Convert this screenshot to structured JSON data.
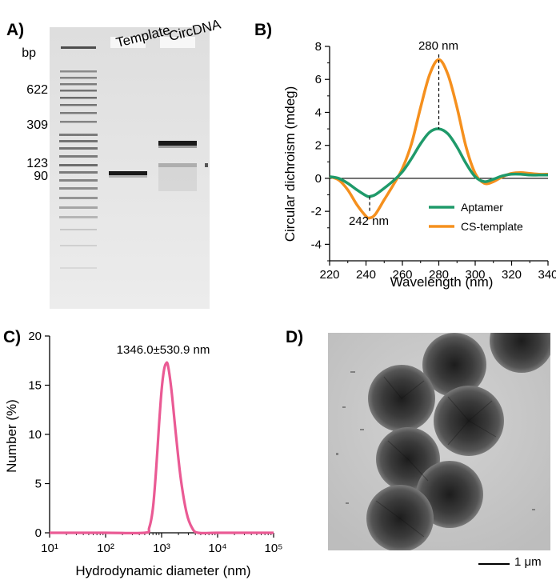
{
  "panels": {
    "a": {
      "letter": "A)",
      "lanes": [
        "Template",
        "CircDNA"
      ],
      "bp_header": "bp",
      "bp_ticks": [
        "622",
        "309",
        "123",
        "90"
      ]
    },
    "b": {
      "letter": "B)",
      "ylabel": "Circular dichroism (mdeg)",
      "xlabel": "Wavelength (nm)",
      "annotations": [
        "280 nm",
        "242 nm"
      ]
    },
    "c": {
      "letter": "C)",
      "ylabel": "Number (%)",
      "xlabel": "Hydrodynamic diameter (nm)",
      "annotation": "1346.0±530.9 nm"
    },
    "d": {
      "letter": "D)",
      "scalebar": "1 μm"
    }
  },
  "chart_data": [
    {
      "type": "line",
      "panel": "B",
      "xlabel": "Wavelength (nm)",
      "ylabel": "Circular dichroism (mdeg)",
      "xlim": [
        220,
        340
      ],
      "ylim": [
        -5,
        8
      ],
      "xticks": [
        220,
        240,
        260,
        280,
        300,
        320,
        340
      ],
      "yticks": [
        -4,
        -2,
        0,
        2,
        4,
        6,
        8
      ],
      "legend": "bottom-right",
      "x": [
        220,
        225,
        230,
        235,
        240,
        242,
        245,
        250,
        255,
        260,
        265,
        270,
        275,
        280,
        285,
        290,
        295,
        300,
        305,
        310,
        315,
        320,
        325,
        330,
        335,
        340
      ],
      "series": [
        {
          "name": "Aptamer",
          "color": "#1f9a6a",
          "values": [
            0.1,
            0.0,
            -0.3,
            -0.7,
            -1.05,
            -1.1,
            -1.0,
            -0.6,
            -0.15,
            0.4,
            1.2,
            2.1,
            2.8,
            3.0,
            2.7,
            1.9,
            0.9,
            0.1,
            -0.2,
            -0.05,
            0.15,
            0.25,
            0.25,
            0.2,
            0.2,
            0.2
          ]
        },
        {
          "name": "CS-template",
          "color": "#f5901e",
          "values": [
            0.1,
            -0.1,
            -0.7,
            -1.6,
            -2.3,
            -2.4,
            -2.2,
            -1.3,
            -0.4,
            0.6,
            2.1,
            4.3,
            6.3,
            7.2,
            6.3,
            4.3,
            1.9,
            0.3,
            -0.3,
            -0.2,
            0.1,
            0.3,
            0.35,
            0.3,
            0.25,
            0.25
          ]
        }
      ],
      "peak_markers": [
        {
          "x": 280,
          "label": "280 nm"
        },
        {
          "x": 242,
          "label": "242 nm"
        }
      ]
    },
    {
      "type": "line",
      "panel": "C",
      "xlabel": "Hydrodynamic diameter (nm)",
      "ylabel": "Number (%)",
      "xscale": "log",
      "xlim": [
        10,
        100000
      ],
      "ylim": [
        0,
        20
      ],
      "yticks": [
        0,
        5,
        10,
        15,
        20
      ],
      "xtick_labels": [
        "10¹",
        "10²",
        "10³",
        "10⁴",
        "10⁵"
      ],
      "series": [
        {
          "name": "",
          "color": "#ea5a94",
          "x": [
            10,
            100,
            500,
            600,
            700,
            800,
            900,
            1000,
            1100,
            1200,
            1300,
            1500,
            1800,
            2200,
            2800,
            3500,
            4500,
            10000,
            100000
          ],
          "values": [
            0,
            0,
            0,
            0.5,
            2.5,
            6.5,
            11.0,
            14.5,
            16.5,
            17.2,
            17.0,
            14.5,
            10.0,
            5.5,
            2.0,
            0.5,
            0,
            0,
            0
          ]
        }
      ],
      "annotation": "1346.0±530.9 nm"
    }
  ]
}
